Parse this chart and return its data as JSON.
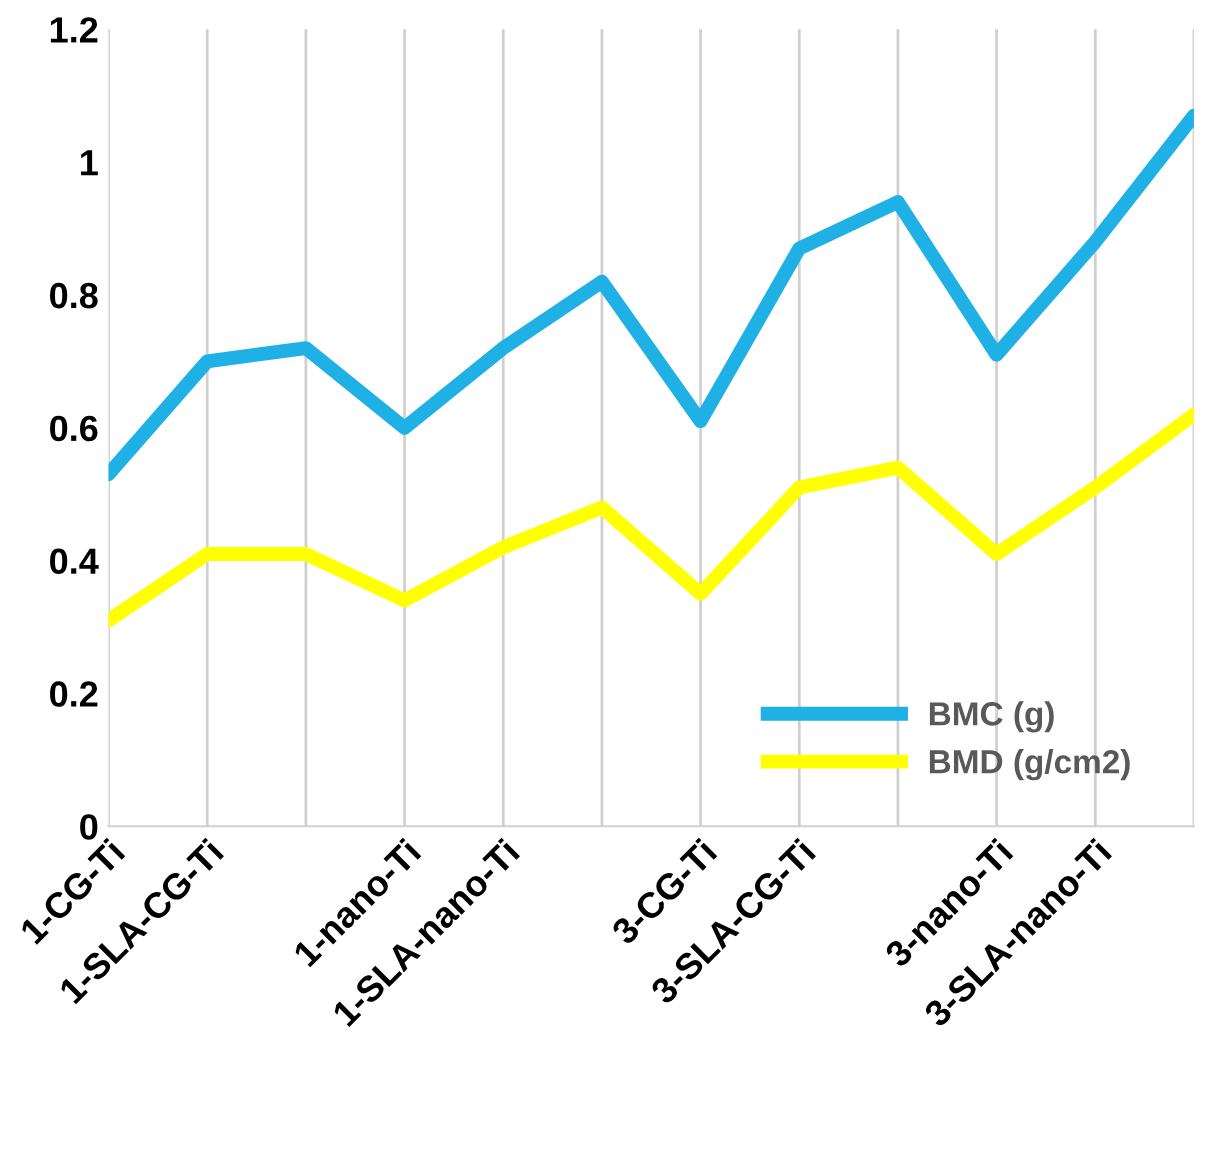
{
  "chart_data": {
    "type": "line",
    "categories": [
      "1-CG-Ti",
      "1-SLA-CG-Ti",
      null,
      "1-nano-Ti",
      "1-SLA-nano-Ti",
      null,
      "3-CG-Ti",
      "3-SLA-CG-Ti",
      null,
      "3-nano-Ti",
      "3-SLA-nano-Ti",
      null
    ],
    "series": [
      {
        "name": "BMC (g)",
        "color": "#1fb0e6",
        "values": [
          0.53,
          0.7,
          0.72,
          0.6,
          0.72,
          0.82,
          0.61,
          0.87,
          0.94,
          0.71,
          0.88,
          1.07
        ]
      },
      {
        "name": "BMD (g/cm2)",
        "color": "#ffff00",
        "values": [
          0.31,
          0.41,
          0.41,
          0.34,
          0.42,
          0.48,
          0.35,
          0.51,
          0.54,
          0.41,
          0.51,
          0.62
        ]
      }
    ],
    "ylim": [
      0,
      1.2
    ],
    "yticks": [
      0,
      0.2,
      0.4,
      0.6,
      0.8,
      1,
      1.2
    ],
    "grid": "x",
    "legend": "bottom right",
    "marker": "none",
    "line_style": "solid"
  }
}
